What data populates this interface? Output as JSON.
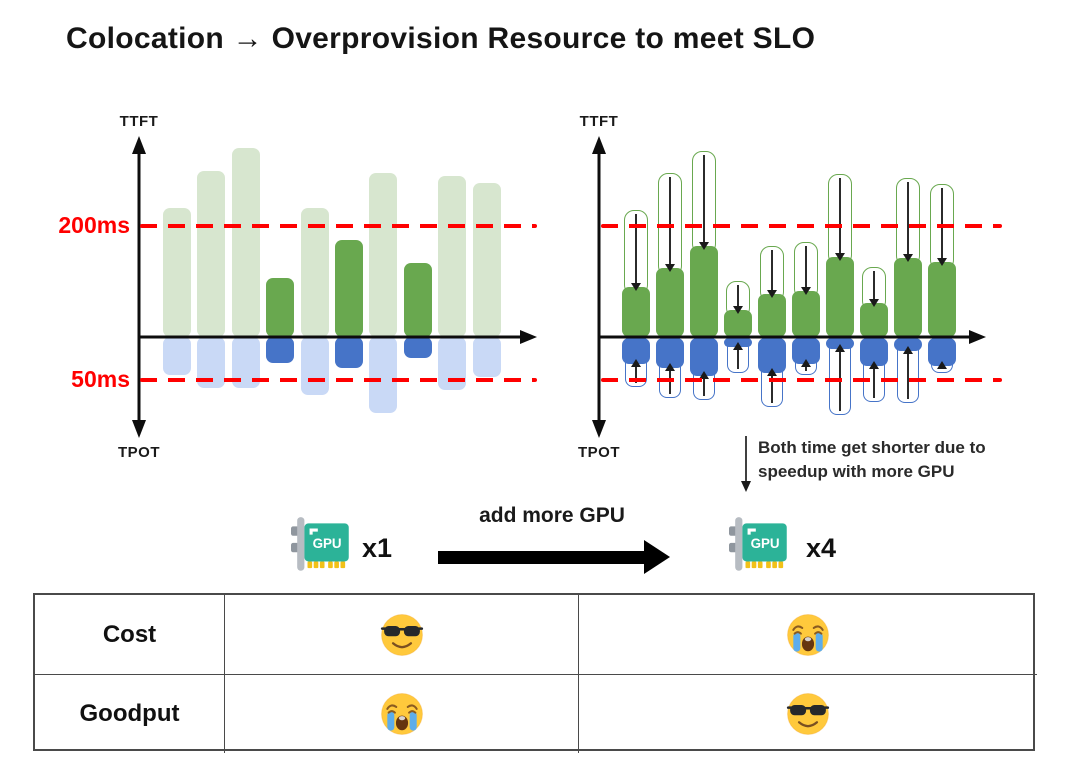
{
  "title": "Colocation → Overprovision Resource to meet SLO",
  "colors": {
    "ttft_meets_slo": "#69a84f",
    "ttft_violates_slo": "#d7e6cf",
    "tpot_meets_slo": "#4674c8",
    "tpot_violates_slo": "#c9d9f6",
    "slo_line_red": "#ff0000",
    "gpu_card_teal": "#2cb398"
  },
  "charts": {
    "left": {
      "y_top_label": "TTFT",
      "y_bottom_label": "TPOT",
      "slo_ttft_label": "200ms",
      "slo_tpot_label": "50ms"
    },
    "right": {
      "y_top_label": "TTFT",
      "y_bottom_label": "TPOT",
      "annotation_line1": "Both time get shorter due to",
      "annotation_line2": "speedup with more GPU"
    }
  },
  "chart_data": [
    {
      "id": "colocation-1-gpu",
      "type": "bar",
      "layout": "mirrored-vertical",
      "y_top_axis": "TTFT",
      "y_bottom_axis": "TPOT",
      "slo": {
        "ttft_ms": 200,
        "tpot_ms": 50
      },
      "requests": [
        {
          "ttft_ms": 232,
          "tpot_ms": 44,
          "meets_slo": false
        },
        {
          "ttft_ms": 299,
          "tpot_ms": 59,
          "meets_slo": false
        },
        {
          "ttft_ms": 341,
          "tpot_ms": 59,
          "meets_slo": false
        },
        {
          "ttft_ms": 106,
          "tpot_ms": 30,
          "meets_slo": true
        },
        {
          "ttft_ms": 232,
          "tpot_ms": 67,
          "meets_slo": false
        },
        {
          "ttft_ms": 175,
          "tpot_ms": 36,
          "meets_slo": true
        },
        {
          "ttft_ms": 296,
          "tpot_ms": 88,
          "meets_slo": false
        },
        {
          "ttft_ms": 133,
          "tpot_ms": 24,
          "meets_slo": true
        },
        {
          "ttft_ms": 290,
          "tpot_ms": 62,
          "meets_slo": false
        },
        {
          "ttft_ms": 277,
          "tpot_ms": 47,
          "meets_slo": false
        }
      ]
    },
    {
      "id": "overprovision-4-gpu",
      "type": "bar",
      "layout": "mirrored-vertical-with-speedup-arrows",
      "y_top_axis": "TTFT",
      "y_bottom_axis": "TPOT",
      "slo": {
        "ttft_ms": 200,
        "tpot_ms": 50
      },
      "requests": [
        {
          "ttft_old_ms": 229,
          "ttft_new_ms": 90,
          "tpot_old_ms": 58,
          "tpot_new_ms": 30
        },
        {
          "ttft_old_ms": 295,
          "ttft_new_ms": 124,
          "tpot_old_ms": 71,
          "tpot_new_ms": 35
        },
        {
          "ttft_old_ms": 336,
          "ttft_new_ms": 164,
          "tpot_old_ms": 73,
          "tpot_new_ms": 44
        },
        {
          "ttft_old_ms": 101,
          "ttft_new_ms": 49,
          "tpot_old_ms": 42,
          "tpot_new_ms": 10
        },
        {
          "ttft_old_ms": 164,
          "ttft_new_ms": 78,
          "tpot_old_ms": 81,
          "tpot_new_ms": 41
        },
        {
          "ttft_old_ms": 171,
          "ttft_new_ms": 82,
          "tpot_old_ms": 44,
          "tpot_new_ms": 30
        },
        {
          "ttft_old_ms": 293,
          "ttft_new_ms": 145,
          "tpot_old_ms": 91,
          "tpot_new_ms": 13
        },
        {
          "ttft_old_ms": 127,
          "ttft_new_ms": 62,
          "tpot_old_ms": 76,
          "tpot_new_ms": 33
        },
        {
          "ttft_old_ms": 287,
          "ttft_new_ms": 142,
          "tpot_old_ms": 77,
          "tpot_new_ms": 15
        },
        {
          "ttft_old_ms": 276,
          "ttft_new_ms": 136,
          "tpot_old_ms": 42,
          "tpot_new_ms": 33
        }
      ]
    }
  ],
  "gpu_row": {
    "left_icon": "gpu-card",
    "left_count": "x1",
    "arrow_label": "add more GPU",
    "right_icon": "gpu-card",
    "right_count": "x4"
  },
  "table": {
    "rows": [
      {
        "label": "Cost",
        "cells": [
          "sunglasses-emoji",
          "loudly-crying-emoji"
        ]
      },
      {
        "label": "Goodput",
        "cells": [
          "loudly-crying-emoji",
          "sunglasses-emoji"
        ]
      }
    ]
  }
}
